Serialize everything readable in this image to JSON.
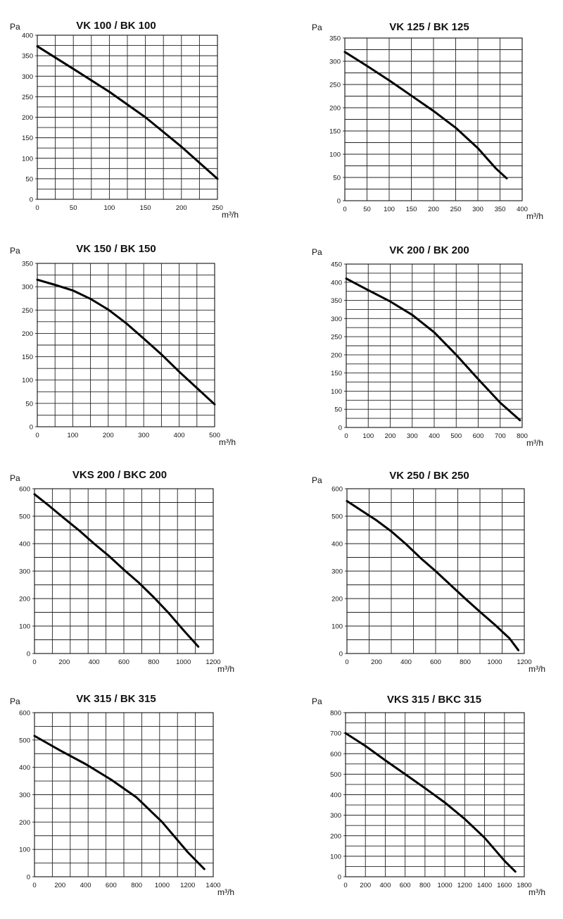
{
  "chart_data": [
    {
      "type": "line",
      "title": "VK 100 / BK 100",
      "ylabel": "Pa",
      "xlabel": "m³/h",
      "xlim": [
        0,
        250
      ],
      "ylim": [
        0,
        400
      ],
      "xticks": [
        0,
        50,
        100,
        150,
        200,
        250
      ],
      "yticks": [
        0,
        50,
        100,
        150,
        200,
        250,
        300,
        350,
        400
      ],
      "grid": true,
      "x": [
        0,
        50,
        100,
        150,
        200,
        250
      ],
      "values": [
        373,
        318,
        262,
        200,
        128,
        50
      ]
    },
    {
      "type": "line",
      "title": "VK 125 / BK 125",
      "ylabel": "Pa",
      "xlabel": "m³/h",
      "xlim": [
        0,
        400
      ],
      "ylim": [
        0,
        350
      ],
      "xticks": [
        0,
        50,
        100,
        150,
        200,
        250,
        300,
        350,
        400
      ],
      "yticks": [
        0,
        50,
        100,
        150,
        200,
        250,
        300,
        350
      ],
      "grid": true,
      "x": [
        0,
        50,
        100,
        150,
        200,
        250,
        300,
        340,
        365
      ],
      "values": [
        320,
        290,
        259,
        226,
        193,
        157,
        113,
        70,
        48
      ]
    },
    {
      "type": "line",
      "title": "VK 150 / BK 150",
      "ylabel": "Pa",
      "xlabel": "m³/h",
      "xlim": [
        0,
        500
      ],
      "ylim": [
        0,
        350
      ],
      "xticks": [
        0,
        100,
        200,
        300,
        400,
        500
      ],
      "yticks": [
        0,
        50,
        100,
        150,
        200,
        250,
        300,
        350
      ],
      "grid": true,
      "x": [
        0,
        50,
        100,
        150,
        200,
        250,
        300,
        350,
        400,
        450,
        500
      ],
      "values": [
        315,
        304,
        292,
        274,
        251,
        222,
        189,
        155,
        118,
        83,
        48
      ]
    },
    {
      "type": "line",
      "title": "VK 200 / BK 200",
      "ylabel": "Pa",
      "xlabel": "m³/h",
      "xlim": [
        0,
        800
      ],
      "ylim": [
        0,
        450
      ],
      "xticks": [
        0,
        100,
        200,
        300,
        400,
        500,
        600,
        700,
        800
      ],
      "yticks": [
        0,
        50,
        100,
        150,
        200,
        250,
        300,
        350,
        400,
        450
      ],
      "grid": true,
      "x": [
        0,
        100,
        200,
        300,
        400,
        500,
        600,
        700,
        790
      ],
      "values": [
        410,
        378,
        347,
        310,
        262,
        200,
        133,
        68,
        20
      ]
    },
    {
      "type": "line",
      "title": "VKS 200 / BKC 200",
      "ylabel": "Pa",
      "xlabel": "m³/h",
      "xlim": [
        0,
        1200
      ],
      "ylim": [
        0,
        600
      ],
      "xticks": [
        0,
        200,
        400,
        600,
        800,
        1000,
        1200
      ],
      "yticks": [
        0,
        100,
        200,
        300,
        400,
        500,
        600
      ],
      "grid": true,
      "x": [
        0,
        100,
        200,
        300,
        400,
        500,
        600,
        700,
        800,
        900,
        1000,
        1100
      ],
      "values": [
        580,
        537,
        492,
        448,
        400,
        355,
        305,
        258,
        205,
        148,
        85,
        25
      ]
    },
    {
      "type": "line",
      "title": "VK 250 / BK 250",
      "ylabel": "Pa",
      "xlabel": "m³/h",
      "xlim": [
        0,
        1200
      ],
      "ylim": [
        0,
        600
      ],
      "xticks": [
        0,
        200,
        400,
        600,
        800,
        1000,
        1200
      ],
      "yticks": [
        0,
        100,
        200,
        300,
        400,
        500,
        600
      ],
      "grid": true,
      "x": [
        0,
        100,
        200,
        300,
        400,
        500,
        600,
        700,
        800,
        900,
        1000,
        1100,
        1160
      ],
      "values": [
        555,
        520,
        485,
        445,
        398,
        347,
        300,
        250,
        200,
        152,
        105,
        55,
        12
      ]
    },
    {
      "type": "line",
      "title": "VK 315 / BK 315",
      "ylabel": "Pa",
      "xlabel": "m³/h",
      "xlim": [
        0,
        1400
      ],
      "ylim": [
        0,
        600
      ],
      "xticks": [
        0,
        200,
        400,
        600,
        800,
        1000,
        1200,
        1400
      ],
      "yticks": [
        0,
        100,
        200,
        300,
        400,
        500,
        600
      ],
      "grid": true,
      "x": [
        0,
        200,
        400,
        600,
        800,
        900,
        1000,
        1100,
        1200,
        1330
      ],
      "values": [
        515,
        462,
        412,
        355,
        290,
        245,
        200,
        145,
        90,
        28
      ]
    },
    {
      "type": "line",
      "title": "VKS 315 / BKC 315",
      "ylabel": "Pa",
      "xlabel": "m³/h",
      "xlim": [
        0,
        1800
      ],
      "ylim": [
        0,
        800
      ],
      "xticks": [
        0,
        200,
        400,
        600,
        800,
        1000,
        1200,
        1400,
        1600,
        1800
      ],
      "yticks": [
        0,
        100,
        200,
        300,
        400,
        500,
        600,
        700,
        800
      ],
      "grid": true,
      "x": [
        0,
        200,
        400,
        600,
        800,
        1000,
        1200,
        1400,
        1600,
        1710
      ],
      "values": [
        700,
        638,
        568,
        500,
        432,
        362,
        282,
        190,
        78,
        25
      ]
    }
  ]
}
